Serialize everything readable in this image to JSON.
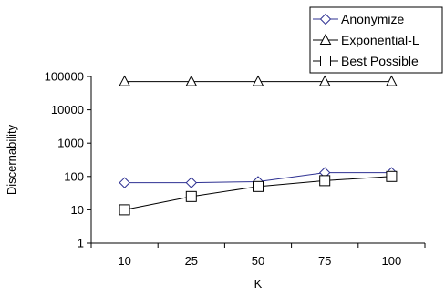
{
  "chart_data": {
    "type": "line",
    "xlabel": "K",
    "ylabel": "Discernability",
    "y_scale": "log",
    "ylim": [
      1,
      100000
    ],
    "y_ticks": [
      "1",
      "10",
      "100",
      "1000",
      "10000",
      "100000"
    ],
    "categories": [
      "10",
      "25",
      "50",
      "75",
      "100"
    ],
    "legend_position": "top-right",
    "grid": false,
    "series": [
      {
        "name": "Anonymize",
        "marker": "diamond",
        "color": "#2e3192",
        "values": [
          65,
          65,
          70,
          130,
          130
        ]
      },
      {
        "name": "Exponential-L",
        "marker": "triangle",
        "color": "#000000",
        "values": [
          70000,
          70000,
          70000,
          70000,
          70000
        ]
      },
      {
        "name": "Best Possible",
        "marker": "square",
        "color": "#000000",
        "values": [
          10,
          25,
          50,
          75,
          100
        ]
      }
    ]
  }
}
